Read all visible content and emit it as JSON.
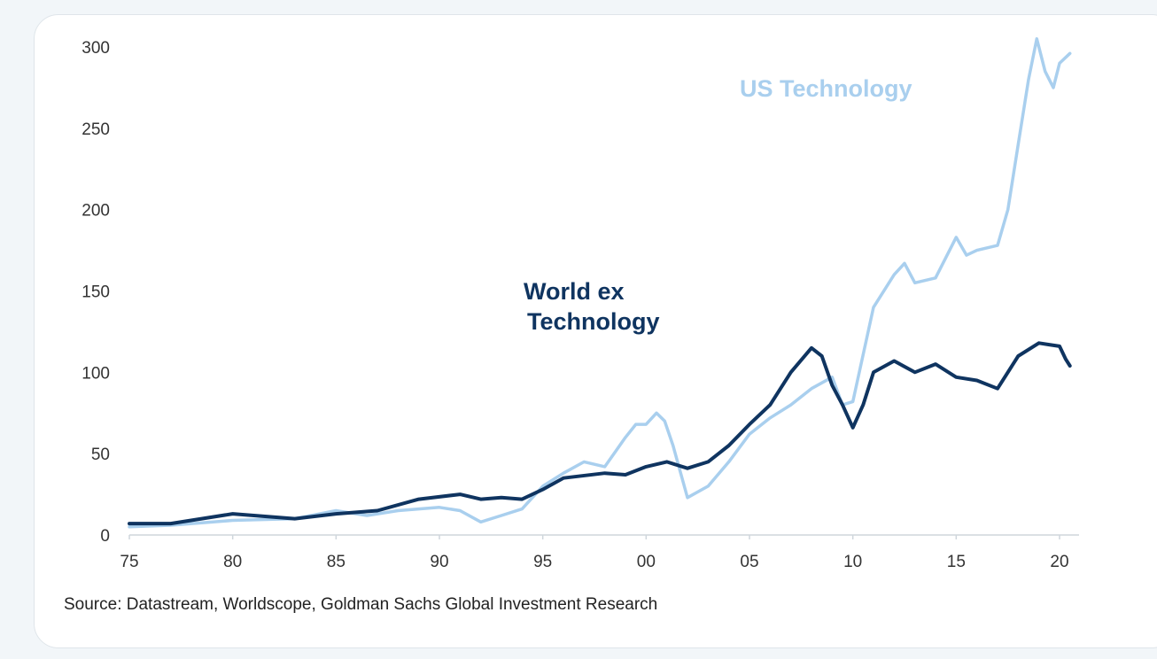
{
  "chart_data": {
    "type": "line",
    "title": "",
    "xlabel": "",
    "ylabel": "",
    "xlim": [
      1975,
      2020.5
    ],
    "ylim": [
      0,
      300
    ],
    "x_tick_labels": [
      "75",
      "80",
      "85",
      "90",
      "95",
      "00",
      "05",
      "10",
      "15",
      "20"
    ],
    "x_tick_values": [
      1975,
      1980,
      1985,
      1990,
      1995,
      2000,
      2005,
      2010,
      2015,
      2020
    ],
    "y_tick_values": [
      0,
      50,
      100,
      150,
      200,
      250,
      300
    ],
    "grid": false,
    "legend": "inline labels",
    "series": [
      {
        "name": "US Technology",
        "color": "#a9cfee",
        "x": [
          1975,
          1977,
          1980,
          1983,
          1985,
          1986.5,
          1988,
          1990,
          1991,
          1992,
          1993,
          1994,
          1995,
          1996,
          1997,
          1998,
          1999,
          1999.5,
          2000,
          2000.5,
          2000.9,
          2001.3,
          2002,
          2003,
          2004,
          2005,
          2006,
          2007,
          2008,
          2009,
          2009.5,
          2010,
          2011,
          2012,
          2012.5,
          2013,
          2014,
          2015,
          2015.5,
          2016,
          2017,
          2017.5,
          2018,
          2018.5,
          2018.9,
          2019.3,
          2019.7,
          2020,
          2020.5
        ],
        "values": [
          5,
          6,
          9,
          10,
          15,
          12,
          15,
          17,
          15,
          8,
          12,
          16,
          30,
          38,
          45,
          42,
          60,
          68,
          68,
          75,
          70,
          55,
          23,
          30,
          45,
          62,
          72,
          80,
          90,
          97,
          80,
          82,
          140,
          160,
          167,
          155,
          158,
          183,
          172,
          175,
          178,
          200,
          240,
          280,
          305,
          285,
          275,
          290,
          296
        ]
      },
      {
        "name": "World ex Technology",
        "color": "#0f3460",
        "x": [
          1975,
          1977,
          1980,
          1983,
          1985,
          1987,
          1989,
          1991,
          1992,
          1993,
          1994,
          1995,
          1996,
          1998,
          1999,
          2000,
          2001,
          2002,
          2003,
          2004,
          2005,
          2006,
          2007,
          2008,
          2008.5,
          2009,
          2009.5,
          2010,
          2010.5,
          2011,
          2012,
          2013,
          2014,
          2015,
          2016,
          2017,
          2018,
          2019,
          2019.5,
          2020,
          2020.3,
          2020.5
        ],
        "values": [
          7,
          7,
          13,
          10,
          13,
          15,
          22,
          25,
          22,
          23,
          22,
          28,
          35,
          38,
          37,
          42,
          45,
          41,
          45,
          55,
          68,
          80,
          100,
          115,
          110,
          92,
          80,
          66,
          80,
          100,
          107,
          100,
          105,
          97,
          95,
          90,
          110,
          118,
          117,
          116,
          108,
          104
        ]
      }
    ],
    "annotations": [
      {
        "text": "US Technology",
        "color": "#a9cfee"
      },
      {
        "lines": [
          "World ex",
          "Technology"
        ],
        "color": "#0f3460"
      }
    ]
  },
  "source": "Source: Datastream, Worldscope, Goldman Sachs Global Investment Research"
}
